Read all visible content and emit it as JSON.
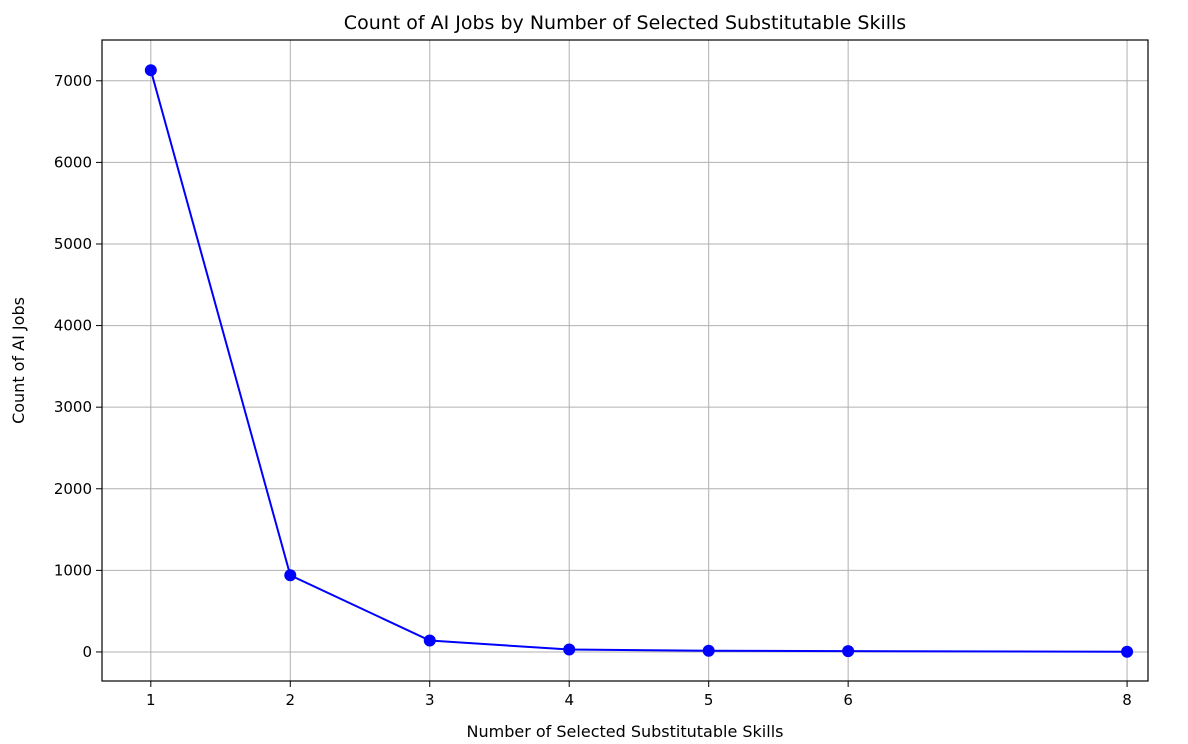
{
  "chart_data": {
    "type": "line",
    "title": "Count of AI Jobs by Number of Selected Substitutable Skills",
    "xlabel": "Number of Selected Substitutable Skills",
    "ylabel": "Count of AI Jobs",
    "x": [
      1,
      2,
      3,
      4,
      5,
      6,
      8
    ],
    "series": [
      {
        "values": [
          7130,
          940,
          140,
          30,
          15,
          10,
          3
        ]
      }
    ],
    "x_ticks": [
      1,
      2,
      3,
      4,
      5,
      6,
      8
    ],
    "y_ticks": [
      0,
      1000,
      2000,
      3000,
      4000,
      5000,
      6000,
      7000
    ],
    "xlim": [
      0.65,
      8.15
    ],
    "ylim": [
      -356,
      7500
    ],
    "grid": true,
    "marker": "circle",
    "line_color": "#0000ff",
    "grid_color": "#b0b0b0"
  }
}
